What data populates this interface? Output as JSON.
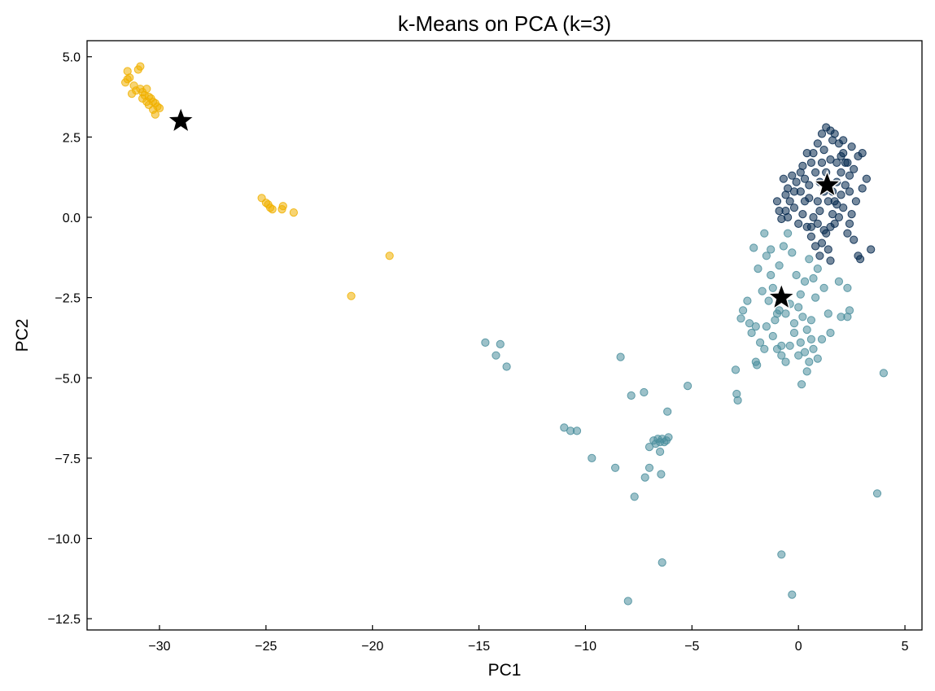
{
  "chart_data": {
    "type": "scatter",
    "title": "k-Means on PCA (k=3)",
    "xlabel": "PC1",
    "ylabel": "PC2",
    "xlim": [
      -33.4,
      5.8
    ],
    "ylim": [
      -12.85,
      5.5
    ],
    "xticks": [
      -30,
      -25,
      -20,
      -15,
      -10,
      -5,
      0,
      5
    ],
    "yticks": [
      5.0,
      2.5,
      0.0,
      -2.5,
      -5.0,
      -7.5,
      -10.0,
      -12.5
    ],
    "xtick_labels": [
      "−30",
      "−25",
      "−20",
      "−15",
      "−10",
      "−5",
      "0",
      "5"
    ],
    "ytick_labels": [
      "5.0",
      "2.5",
      "0.0",
      "−2.5",
      "−5.0",
      "−7.5",
      "−10.0",
      "−12.5"
    ],
    "grid": false,
    "colors": [
      "#f0b000",
      "#4a8e9c",
      "#06294f"
    ],
    "series": [
      {
        "color": "#f0b000",
        "points": [
          [
            -31.5,
            4.55
          ],
          [
            -31.6,
            4.2
          ],
          [
            -31.4,
            4.35
          ],
          [
            -31.2,
            4.1
          ],
          [
            -31.0,
            4.6
          ],
          [
            -30.9,
            4.7
          ],
          [
            -31.3,
            3.85
          ],
          [
            -31.1,
            3.95
          ],
          [
            -30.9,
            4.0
          ],
          [
            -30.8,
            3.9
          ],
          [
            -30.6,
            4.0
          ],
          [
            -30.7,
            3.8
          ],
          [
            -30.5,
            3.75
          ],
          [
            -30.4,
            3.7
          ],
          [
            -30.3,
            3.6
          ],
          [
            -30.2,
            3.55
          ],
          [
            -30.5,
            3.5
          ],
          [
            -30.1,
            3.45
          ],
          [
            -30.0,
            3.4
          ],
          [
            -30.2,
            3.2
          ],
          [
            -30.6,
            3.6
          ],
          [
            -30.8,
            3.7
          ],
          [
            -31.5,
            4.3
          ],
          [
            -30.3,
            3.35
          ],
          [
            -25.2,
            0.6
          ],
          [
            -25.0,
            0.45
          ],
          [
            -24.9,
            0.4
          ],
          [
            -24.8,
            0.3
          ],
          [
            -24.7,
            0.25
          ],
          [
            -24.2,
            0.35
          ],
          [
            -24.25,
            0.25
          ],
          [
            -23.7,
            0.15
          ],
          [
            -19.2,
            -1.2
          ],
          [
            -21.0,
            -2.45
          ]
        ]
      },
      {
        "color": "#4a8e9c",
        "points": [
          [
            -14.7,
            -3.9
          ],
          [
            -14.2,
            -4.3
          ],
          [
            -14.0,
            -3.95
          ],
          [
            -13.7,
            -4.65
          ],
          [
            -11.0,
            -6.55
          ],
          [
            -10.7,
            -6.65
          ],
          [
            -10.4,
            -6.65
          ],
          [
            -9.7,
            -7.5
          ],
          [
            -8.6,
            -7.8
          ],
          [
            -8.35,
            -4.35
          ],
          [
            -8.0,
            -11.95
          ],
          [
            -7.85,
            -5.55
          ],
          [
            -7.7,
            -8.7
          ],
          [
            -7.25,
            -5.45
          ],
          [
            -7.2,
            -8.1
          ],
          [
            -7.0,
            -7.8
          ],
          [
            -7.0,
            -7.15
          ],
          [
            -6.8,
            -6.95
          ],
          [
            -6.7,
            -7.05
          ],
          [
            -6.6,
            -6.9
          ],
          [
            -6.5,
            -7.0
          ],
          [
            -6.5,
            -7.3
          ],
          [
            -6.4,
            -6.9
          ],
          [
            -6.3,
            -7.0
          ],
          [
            -6.2,
            -6.95
          ],
          [
            -6.1,
            -6.85
          ],
          [
            -6.45,
            -8.0
          ],
          [
            -6.4,
            -10.75
          ],
          [
            -6.15,
            -6.05
          ],
          [
            -5.2,
            -5.25
          ],
          [
            -2.95,
            -4.75
          ],
          [
            -2.9,
            -5.5
          ],
          [
            -2.85,
            -5.7
          ],
          [
            -0.8,
            -10.5
          ],
          [
            -0.3,
            -11.75
          ],
          [
            0.15,
            -5.2
          ],
          [
            0.4,
            -4.8
          ],
          [
            3.7,
            -8.6
          ],
          [
            4.0,
            -4.85
          ],
          [
            -2.1,
            -0.95
          ],
          [
            -2.0,
            -4.5
          ],
          [
            -1.95,
            -4.6
          ],
          [
            -1.6,
            -0.5
          ],
          [
            -1.5,
            -1.2
          ],
          [
            -1.3,
            -1.8
          ],
          [
            -1.2,
            -3.7
          ],
          [
            -1.0,
            -4.1
          ],
          [
            -0.8,
            -4.3
          ],
          [
            -0.6,
            -4.5
          ],
          [
            -0.4,
            -4.0
          ],
          [
            -0.2,
            -3.6
          ],
          [
            0.1,
            -3.9
          ],
          [
            0.3,
            -4.2
          ],
          [
            0.5,
            -4.5
          ],
          [
            0.7,
            -4.1
          ],
          [
            0.9,
            -4.4
          ],
          [
            1.1,
            -3.8
          ],
          [
            1.5,
            -3.6
          ],
          [
            2.0,
            -3.1
          ],
          [
            1.2,
            -2.2
          ],
          [
            1.9,
            -2.0
          ],
          [
            1.4,
            -3.0
          ],
          [
            2.3,
            -2.2
          ],
          [
            2.4,
            -2.9
          ],
          [
            2.3,
            -3.1
          ],
          [
            -2.6,
            -2.9
          ],
          [
            -2.7,
            -3.15
          ],
          [
            -2.3,
            -3.3
          ],
          [
            -2.2,
            -3.6
          ],
          [
            -2.0,
            -3.4
          ],
          [
            -1.8,
            -3.9
          ],
          [
            -1.6,
            -4.1
          ],
          [
            0.8,
            -2.5
          ],
          [
            0.9,
            -1.6
          ],
          [
            -1.4,
            -2.6
          ],
          [
            -1.2,
            -2.2
          ],
          [
            -0.9,
            -1.5
          ],
          [
            -0.7,
            -0.9
          ],
          [
            -0.5,
            -0.5
          ],
          [
            -0.3,
            -1.1
          ],
          [
            -0.1,
            -1.8
          ],
          [
            0.1,
            -2.4
          ],
          [
            0.3,
            -2.0
          ],
          [
            0.5,
            -1.3
          ],
          [
            -1.9,
            -1.6
          ],
          [
            -1.7,
            -2.3
          ],
          [
            -0.6,
            -3.0
          ],
          [
            -0.4,
            -2.7
          ],
          [
            -0.2,
            -3.3
          ],
          [
            0.0,
            -2.8
          ],
          [
            0.2,
            -3.1
          ],
          [
            0.4,
            -3.5
          ],
          [
            0.6,
            -3.2
          ],
          [
            -1.1,
            -3.2
          ],
          [
            -0.9,
            -2.9
          ],
          [
            -1.5,
            -3.4
          ],
          [
            -2.4,
            -2.6
          ],
          [
            -1.3,
            -1.0
          ],
          [
            0.7,
            -1.9
          ],
          [
            -0.8,
            -4.0
          ],
          [
            0.0,
            -4.3
          ],
          [
            -1.0,
            -3.0
          ],
          [
            0.6,
            -3.8
          ]
        ]
      },
      {
        "color": "#06294f",
        "points": [
          [
            -0.8,
            -0.05
          ],
          [
            -0.6,
            0.2
          ],
          [
            -0.4,
            0.5
          ],
          [
            -0.5,
            0.9
          ],
          [
            -0.7,
            1.2
          ],
          [
            -0.3,
            1.3
          ],
          [
            -0.1,
            1.1
          ],
          [
            0.1,
            0.8
          ],
          [
            0.3,
            0.5
          ],
          [
            0.2,
            0.1
          ],
          [
            0.0,
            -0.2
          ],
          [
            -0.5,
            0.0
          ],
          [
            0.4,
            -0.3
          ],
          [
            0.6,
            -0.6
          ],
          [
            0.8,
            -0.9
          ],
          [
            1.0,
            -1.2
          ],
          [
            1.1,
            -0.8
          ],
          [
            1.3,
            -0.5
          ],
          [
            1.5,
            -0.3
          ],
          [
            0.9,
            -0.2
          ],
          [
            1.4,
            -1.0
          ],
          [
            1.5,
            -1.35
          ],
          [
            1.6,
            0.1
          ],
          [
            1.8,
            0.4
          ],
          [
            2.0,
            0.7
          ],
          [
            2.2,
            1.0
          ],
          [
            2.4,
            1.3
          ],
          [
            2.3,
            1.7
          ],
          [
            2.1,
            2.0
          ],
          [
            1.9,
            2.3
          ],
          [
            1.7,
            2.6
          ],
          [
            1.5,
            2.7
          ],
          [
            1.3,
            2.8
          ],
          [
            1.1,
            2.6
          ],
          [
            0.9,
            2.3
          ],
          [
            0.7,
            2.0
          ],
          [
            0.6,
            1.7
          ],
          [
            0.8,
            1.4
          ],
          [
            1.0,
            1.1
          ],
          [
            1.2,
            0.8
          ],
          [
            1.4,
            0.5
          ],
          [
            1.6,
            0.8
          ],
          [
            1.8,
            1.1
          ],
          [
            2.0,
            1.4
          ],
          [
            2.2,
            1.7
          ],
          [
            0.5,
            1.0
          ],
          [
            0.3,
            1.2
          ],
          [
            1.7,
            -0.2
          ],
          [
            1.9,
            0.0
          ],
          [
            2.1,
            0.3
          ],
          [
            2.6,
            1.5
          ],
          [
            2.8,
            1.9
          ],
          [
            3.0,
            2.0
          ],
          [
            3.2,
            1.2
          ],
          [
            3.0,
            0.9
          ],
          [
            2.7,
            0.5
          ],
          [
            2.5,
            0.1
          ],
          [
            2.4,
            -0.2
          ],
          [
            2.3,
            -0.5
          ],
          [
            2.6,
            -0.7
          ],
          [
            2.8,
            -1.2
          ],
          [
            3.4,
            -1.0
          ],
          [
            2.9,
            -1.3
          ],
          [
            1.2,
            2.1
          ],
          [
            1.6,
            2.4
          ],
          [
            0.4,
            2.0
          ],
          [
            0.2,
            1.6
          ],
          [
            -0.2,
            0.8
          ],
          [
            -1.0,
            0.5
          ],
          [
            -0.9,
            0.2
          ],
          [
            1.0,
            0.2
          ],
          [
            0.7,
            0.0
          ],
          [
            1.3,
            1.4
          ],
          [
            1.5,
            1.8
          ],
          [
            2.1,
            2.4
          ],
          [
            2.5,
            2.2
          ],
          [
            -0.2,
            0.3
          ],
          [
            0.5,
            0.6
          ],
          [
            1.8,
            1.7
          ],
          [
            1.1,
            1.7
          ],
          [
            0.9,
            0.5
          ],
          [
            1.7,
            0.5
          ],
          [
            2.4,
            0.8
          ],
          [
            0.1,
            1.4
          ],
          [
            -0.6,
            0.7
          ],
          [
            0.6,
            -0.3
          ],
          [
            1.2,
            -0.4
          ],
          [
            2.0,
            1.9
          ]
        ]
      }
    ],
    "centroids": [
      [
        -29.0,
        3.0
      ],
      [
        -0.8,
        -2.5
      ],
      [
        1.35,
        1.0
      ]
    ]
  }
}
